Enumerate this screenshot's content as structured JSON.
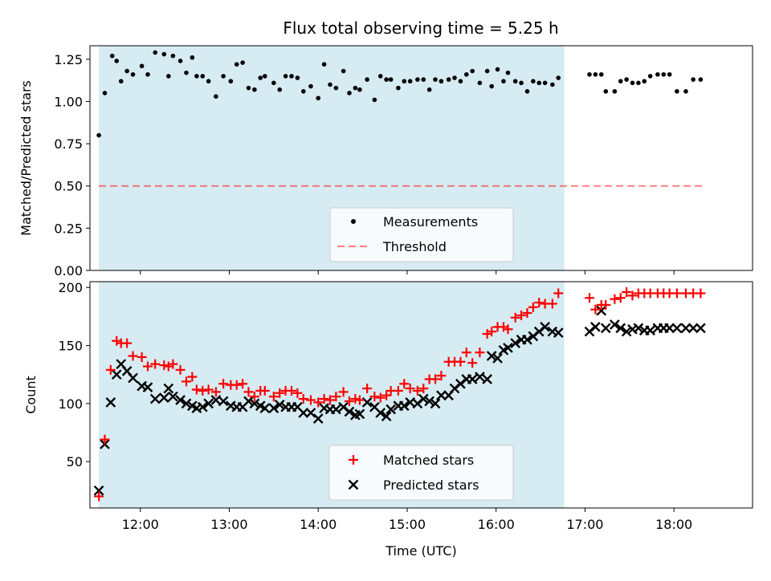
{
  "figure": {
    "title": "Flux total observing time = 5.25 h",
    "xlabel": "Time (UTC)"
  },
  "colors": {
    "shade": "#add8e6",
    "measurement": "#000000",
    "threshold": "#ff0000",
    "matched": "#ff0000",
    "predicted": "#000000"
  },
  "chart_data": [
    {
      "type": "scatter",
      "ylabel": "Matched/Predicted stars",
      "xlim": [
        "11:26",
        "18:53"
      ],
      "ylim": [
        0,
        1.33
      ],
      "yticks": [
        0.0,
        0.25,
        0.5,
        0.75,
        1.0,
        1.25
      ],
      "ytick_labels": [
        "0.00",
        "0.25",
        "0.50",
        "0.75",
        "1.00",
        "1.25"
      ],
      "shaded_region": [
        "11:32",
        "16:46"
      ],
      "legend_position": "lower center",
      "threshold": {
        "name": "Threshold",
        "value": 0.5,
        "x": [
          "11:32",
          "18:20"
        ]
      },
      "series": [
        {
          "name": "Measurements",
          "x": [
            "11:32",
            "11:36",
            "11:41",
            "11:44",
            "11:47",
            "11:51",
            "11:55",
            "12:01",
            "12:05",
            "12:10",
            "12:16",
            "12:19",
            "12:22",
            "12:27",
            "12:31",
            "12:35",
            "12:38",
            "12:42",
            "12:46",
            "12:51",
            "12:56",
            "13:01",
            "13:05",
            "13:09",
            "13:13",
            "13:17",
            "13:21",
            "13:24",
            "13:30",
            "13:34",
            "13:38",
            "13:42",
            "13:46",
            "13:50",
            "13:55",
            "14:00",
            "14:04",
            "14:08",
            "14:12",
            "14:17",
            "14:21",
            "14:25",
            "14:28",
            "14:33",
            "14:38",
            "14:42",
            "14:46",
            "14:49",
            "14:54",
            "14:58",
            "15:02",
            "15:07",
            "15:11",
            "15:15",
            "15:19",
            "15:23",
            "15:28",
            "15:32",
            "15:36",
            "15:40",
            "15:44",
            "15:49",
            "15:54",
            "15:57",
            "16:01",
            "16:05",
            "16:08",
            "16:13",
            "16:17",
            "16:21",
            "16:25",
            "16:29",
            "16:33",
            "16:38",
            "16:42",
            "17:03",
            "17:07",
            "17:11",
            "17:14",
            "17:20",
            "17:24",
            "17:28",
            "17:32",
            "17:36",
            "17:40",
            "17:44",
            "17:49",
            "17:53",
            "17:57",
            "18:02",
            "18:08",
            "18:13",
            "18:18"
          ],
          "y": [
            0.8,
            1.05,
            1.27,
            1.24,
            1.12,
            1.18,
            1.16,
            1.21,
            1.16,
            1.29,
            1.28,
            1.15,
            1.27,
            1.24,
            1.17,
            1.26,
            1.15,
            1.15,
            1.12,
            1.03,
            1.15,
            1.12,
            1.22,
            1.23,
            1.08,
            1.07,
            1.14,
            1.15,
            1.11,
            1.07,
            1.15,
            1.15,
            1.14,
            1.06,
            1.09,
            1.02,
            1.22,
            1.1,
            1.08,
            1.18,
            1.05,
            1.08,
            1.07,
            1.13,
            1.01,
            1.15,
            1.13,
            1.13,
            1.08,
            1.12,
            1.12,
            1.13,
            1.13,
            1.07,
            1.13,
            1.12,
            1.13,
            1.14,
            1.12,
            1.16,
            1.18,
            1.11,
            1.18,
            1.09,
            1.19,
            1.12,
            1.17,
            1.12,
            1.11,
            1.06,
            1.12,
            1.11,
            1.11,
            1.1,
            1.14,
            1.16,
            1.16,
            1.16,
            1.06,
            1.06,
            1.12,
            1.13,
            1.11,
            1.11,
            1.12,
            1.15,
            1.16,
            1.16,
            1.16,
            1.06,
            1.06,
            1.13,
            1.13
          ]
        }
      ]
    },
    {
      "type": "scatter",
      "ylabel": "Count",
      "xlim": [
        "11:26",
        "18:53"
      ],
      "ylim": [
        10,
        205
      ],
      "yticks": [
        50,
        100,
        150,
        200
      ],
      "shaded_region": [
        "11:32",
        "16:46"
      ],
      "legend_position": "lower center",
      "xticks": [
        "12:00",
        "13:00",
        "14:00",
        "15:00",
        "16:00",
        "17:00",
        "18:00"
      ],
      "series": [
        {
          "name": "Matched stars",
          "marker": "+",
          "x": [
            "11:32",
            "11:36",
            "11:40",
            "11:44",
            "11:47",
            "11:51",
            "11:55",
            "12:01",
            "12:05",
            "12:10",
            "12:16",
            "12:19",
            "12:22",
            "12:27",
            "12:31",
            "12:35",
            "12:38",
            "12:42",
            "12:46",
            "12:51",
            "12:56",
            "13:01",
            "13:05",
            "13:09",
            "13:13",
            "13:17",
            "13:21",
            "13:24",
            "13:30",
            "13:34",
            "13:38",
            "13:42",
            "13:46",
            "13:50",
            "13:55",
            "14:00",
            "14:04",
            "14:08",
            "14:12",
            "14:17",
            "14:21",
            "14:25",
            "14:28",
            "14:33",
            "14:38",
            "14:42",
            "14:46",
            "14:49",
            "14:54",
            "14:58",
            "15:02",
            "15:07",
            "15:11",
            "15:15",
            "15:19",
            "15:23",
            "15:28",
            "15:32",
            "15:36",
            "15:40",
            "15:44",
            "15:49",
            "15:54",
            "15:57",
            "16:01",
            "16:05",
            "16:08",
            "16:13",
            "16:17",
            "16:21",
            "16:25",
            "16:29",
            "16:33",
            "16:38",
            "16:42",
            "17:03",
            "17:07",
            "17:11",
            "17:14",
            "17:20",
            "17:24",
            "17:28",
            "17:32",
            "17:36",
            "17:40",
            "17:44",
            "17:49",
            "17:53",
            "17:57",
            "18:02",
            "18:08",
            "18:13",
            "18:18"
          ],
          "y": [
            20,
            69,
            129,
            154,
            152,
            152,
            141,
            140,
            132,
            134,
            133,
            132,
            134,
            129,
            119,
            123,
            112,
            111,
            112,
            110,
            117,
            116,
            116,
            117,
            110,
            106,
            111,
            111,
            106,
            109,
            111,
            111,
            109,
            104,
            103,
            101,
            104,
            103,
            106,
            110,
            102,
            104,
            103,
            113,
            106,
            105,
            107,
            111,
            111,
            117,
            113,
            111,
            113,
            121,
            121,
            124,
            136,
            136,
            136,
            144,
            135,
            144,
            160,
            162,
            166,
            166,
            164,
            174,
            176,
            178,
            183,
            187,
            186,
            186,
            195,
            191,
            181,
            185,
            185,
            190,
            191,
            196,
            193,
            195,
            195,
            195,
            195,
            195,
            195,
            195,
            195,
            195,
            195
          ]
        },
        {
          "name": "Predicted stars",
          "marker": "x",
          "x": [
            "11:32",
            "11:36",
            "11:40",
            "11:44",
            "11:47",
            "11:51",
            "11:55",
            "12:01",
            "12:05",
            "12:10",
            "12:16",
            "12:19",
            "12:22",
            "12:27",
            "12:31",
            "12:35",
            "12:38",
            "12:42",
            "12:46",
            "12:51",
            "12:56",
            "13:01",
            "13:05",
            "13:09",
            "13:13",
            "13:17",
            "13:21",
            "13:24",
            "13:30",
            "13:34",
            "13:38",
            "13:42",
            "13:46",
            "13:50",
            "13:55",
            "14:00",
            "14:04",
            "14:08",
            "14:12",
            "14:17",
            "14:21",
            "14:25",
            "14:28",
            "14:33",
            "14:38",
            "14:42",
            "14:46",
            "14:49",
            "14:54",
            "14:58",
            "15:02",
            "15:07",
            "15:11",
            "15:15",
            "15:19",
            "15:23",
            "15:28",
            "15:32",
            "15:36",
            "15:40",
            "15:44",
            "15:49",
            "15:54",
            "15:57",
            "16:01",
            "16:05",
            "16:08",
            "16:13",
            "16:17",
            "16:21",
            "16:25",
            "16:29",
            "16:33",
            "16:38",
            "16:42",
            "17:03",
            "17:07",
            "17:11",
            "17:14",
            "17:20",
            "17:24",
            "17:28",
            "17:32",
            "17:36",
            "17:40",
            "17:44",
            "17:49",
            "17:53",
            "17:57",
            "18:02",
            "18:08",
            "18:13",
            "18:18"
          ],
          "y": [
            25,
            65,
            101,
            125,
            134,
            128,
            122,
            115,
            114,
            104,
            105,
            113,
            106,
            103,
            100,
            98,
            96,
            97,
            100,
            103,
            102,
            98,
            97,
            97,
            102,
            100,
            98,
            96,
            96,
            99,
            97,
            97,
            97,
            92,
            92,
            87,
            96,
            95,
            95,
            97,
            93,
            90,
            91,
            101,
            97,
            92,
            89,
            95,
            98,
            98,
            101,
            100,
            104,
            102,
            100,
            107,
            107,
            113,
            117,
            121,
            121,
            123,
            121,
            141,
            139,
            146,
            148,
            152,
            155,
            155,
            158,
            162,
            166,
            162,
            161,
            162,
            166,
            180,
            165,
            168,
            165,
            162,
            164,
            165,
            163,
            163,
            165,
            165,
            165,
            165,
            165,
            165,
            165
          ]
        }
      ]
    }
  ]
}
